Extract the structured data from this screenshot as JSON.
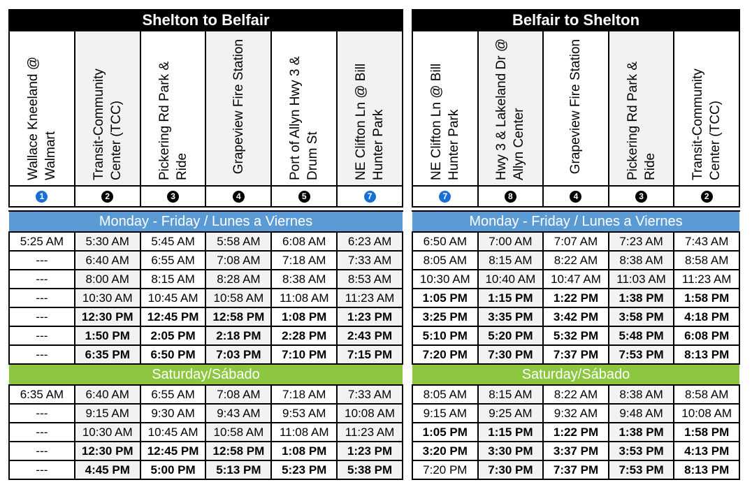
{
  "left": {
    "title": "Shelton to Belfair",
    "stops": [
      {
        "name": "Wallace Kneeland @ Walmart",
        "num": "1",
        "color": "blue"
      },
      {
        "name": "Transit-Community Center (TCC)",
        "num": "2",
        "color": "black"
      },
      {
        "name": "Pickering Rd Park & Ride",
        "num": "3",
        "color": "black"
      },
      {
        "name": "Grapeview Fire Station",
        "num": "4",
        "color": "black"
      },
      {
        "name": "Port of Allyn Hwy 3 & Drum St",
        "num": "5",
        "color": "black"
      },
      {
        "name": "NE Clifton Ln @ Bill Hunter Park",
        "num": "7",
        "color": "blue"
      }
    ],
    "weekday_label": "Monday - Friday / Lunes a Viernes",
    "weekday": [
      {
        "bold": false,
        "times": [
          "5:25 AM",
          "5:30 AM",
          "5:45 AM",
          "5:58 AM",
          "6:08 AM",
          "6:23 AM"
        ]
      },
      {
        "bold": false,
        "times": [
          "---",
          "6:40 AM",
          "6:55 AM",
          "7:08 AM",
          "7:18 AM",
          "7:33 AM"
        ]
      },
      {
        "bold": false,
        "times": [
          "---",
          "8:00 AM",
          "8:15 AM",
          "8:28 AM",
          "8:38 AM",
          "8:53 AM"
        ]
      },
      {
        "bold": false,
        "times": [
          "---",
          "10:30 AM",
          "10:45 AM",
          "10:58 AM",
          "11:08 AM",
          "11:23 AM"
        ]
      },
      {
        "bold": true,
        "times": [
          "---",
          "12:30 PM",
          "12:45 PM",
          "12:58 PM",
          "1:08 PM",
          "1:23 PM"
        ]
      },
      {
        "bold": true,
        "times": [
          "---",
          "1:50 PM",
          "2:05 PM",
          "2:18 PM",
          "2:28 PM",
          "2:43 PM"
        ]
      },
      {
        "bold": true,
        "times": [
          "---",
          "6:35 PM",
          "6:50 PM",
          "7:03 PM",
          "7:10 PM",
          "7:15 PM"
        ]
      }
    ],
    "saturday_label": "Saturday/Sábado",
    "saturday": [
      {
        "bold": false,
        "times": [
          "6:35 AM",
          "6:40 AM",
          "6:55 AM",
          "7:08 AM",
          "7:18 AM",
          "7:33 AM"
        ]
      },
      {
        "bold": false,
        "times": [
          "---",
          "9:15 AM",
          "9:30 AM",
          "9:43 AM",
          "9:53 AM",
          "10:08 AM"
        ]
      },
      {
        "bold": false,
        "times": [
          "---",
          "10:30 AM",
          "10:45 AM",
          "10:58 AM",
          "11:08 AM",
          "11:23 AM"
        ]
      },
      {
        "bold": true,
        "times": [
          "---",
          "12:30 PM",
          "12:45 PM",
          "12:58 PM",
          "1:08 PM",
          "1:23 PM"
        ]
      },
      {
        "bold": true,
        "times": [
          "---",
          "4:45 PM",
          "5:00 PM",
          "5:13 PM",
          "5:23 PM",
          "5:38 PM"
        ]
      }
    ]
  },
  "right": {
    "title": "Belfair to Shelton",
    "stops": [
      {
        "name": "NE Clifton Ln @ Bill Hunter Park",
        "num": "7",
        "color": "blue"
      },
      {
        "name": "Hwy 3 & Lakeland Dr @ Allyn Center",
        "num": "8",
        "color": "black"
      },
      {
        "name": "Grapeview Fire Station",
        "num": "4",
        "color": "black"
      },
      {
        "name": "Pickering Rd Park & Ride",
        "num": "3",
        "color": "black"
      },
      {
        "name": "Transit-Community Center (TCC)",
        "num": "2",
        "color": "black"
      }
    ],
    "weekday_label": "Monday - Friday / Lunes a Viernes",
    "weekday": [
      {
        "bold": false,
        "times": [
          "6:50 AM",
          "7:00 AM",
          "7:07 AM",
          "7:23 AM",
          "7:43 AM"
        ]
      },
      {
        "bold": false,
        "times": [
          "8:05 AM",
          "8:15 AM",
          "8:22 AM",
          "8:38 AM",
          "8:58 AM"
        ]
      },
      {
        "bold": false,
        "times": [
          "10:30 AM",
          "10:40 AM",
          "10:47 AM",
          "11:03 AM",
          "11:23 AM"
        ]
      },
      {
        "bold": true,
        "times": [
          "1:05 PM",
          "1:15 PM",
          "1:22 PM",
          "1:38 PM",
          "1:58 PM"
        ]
      },
      {
        "bold": true,
        "times": [
          "3:25 PM",
          "3:35 PM",
          "3:42 PM",
          "3:58 PM",
          "4:18 PM"
        ]
      },
      {
        "bold": true,
        "times": [
          "5:10 PM",
          "5:20 PM",
          "5:32 PM",
          "5:48 PM",
          "6:08 PM"
        ]
      },
      {
        "bold": true,
        "times": [
          "7:20 PM",
          "7:30 PM",
          "7:37 PM",
          "7:53 PM",
          "8:13 PM"
        ]
      }
    ],
    "saturday_label": "Saturday/Sábado",
    "saturday": [
      {
        "bold": false,
        "times": [
          "8:05 AM",
          "8:15 AM",
          "8:22 AM",
          "8:38 AM",
          "8:58 AM"
        ]
      },
      {
        "bold": false,
        "times": [
          "9:15 AM",
          "9:25 AM",
          "9:32 AM",
          "9:48 AM",
          "10:08 AM"
        ]
      },
      {
        "bold": true,
        "times": [
          "1:05 PM",
          "1:15 PM",
          "1:22 PM",
          "1:38 PM",
          "1:58 PM"
        ]
      },
      {
        "bold": true,
        "times": [
          "3:20 PM",
          "3:30 PM",
          "3:37 PM",
          "3:53 PM",
          "4:13 PM"
        ]
      },
      {
        "bold": true,
        "firstNormal": true,
        "times": [
          "7:20 PM",
          "7:30 PM",
          "7:37 PM",
          "7:53 PM",
          "8:13 PM"
        ]
      }
    ]
  }
}
